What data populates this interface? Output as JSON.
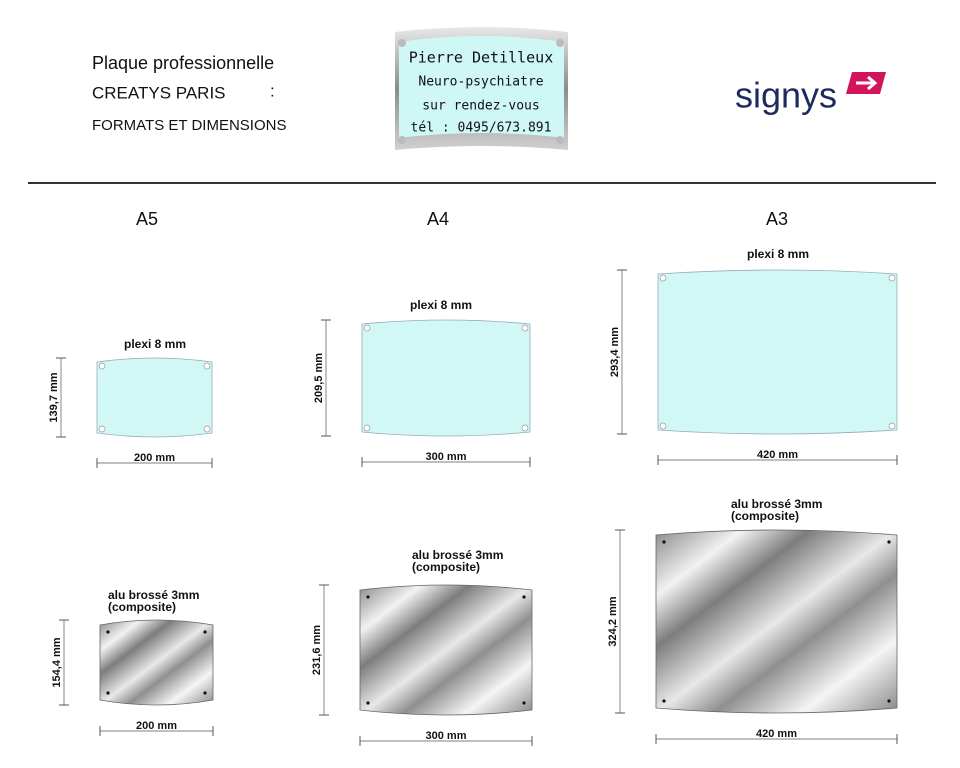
{
  "header": {
    "title": "Plaque professionnelle",
    "brand": "CREATYS PARIS",
    "colon": ":",
    "subtitle": "FORMATS ET DIMENSIONS"
  },
  "sample_plate": {
    "lines": [
      "Pierre Detilleux",
      "Neuro-psychiatre",
      "sur rendez-vous",
      "tél : 0495/673.891"
    ]
  },
  "logo": {
    "text": "signys"
  },
  "formats": [
    {
      "name": "A5",
      "plexi": {
        "label": "plexi 8 mm",
        "width": "200 mm",
        "height": "139,7 mm"
      },
      "alu": {
        "label": [
          "alu brossé 3mm",
          "(composite)"
        ],
        "width": "200 mm",
        "height": "154,4 mm"
      }
    },
    {
      "name": "A4",
      "plexi": {
        "label": "plexi 8 mm",
        "width": "300 mm",
        "height": "209,5 mm"
      },
      "alu": {
        "label": [
          "alu brossé 3mm",
          "(composite)"
        ],
        "width": "300 mm",
        "height": "231,6 mm"
      }
    },
    {
      "name": "A3",
      "plexi": {
        "label": "plexi 8 mm",
        "width": "420 mm",
        "height": "293,4 mm"
      },
      "alu": {
        "label": [
          "alu brossé 3mm",
          "(composite)"
        ],
        "width": "420 mm",
        "height": "324,2 mm"
      }
    }
  ]
}
